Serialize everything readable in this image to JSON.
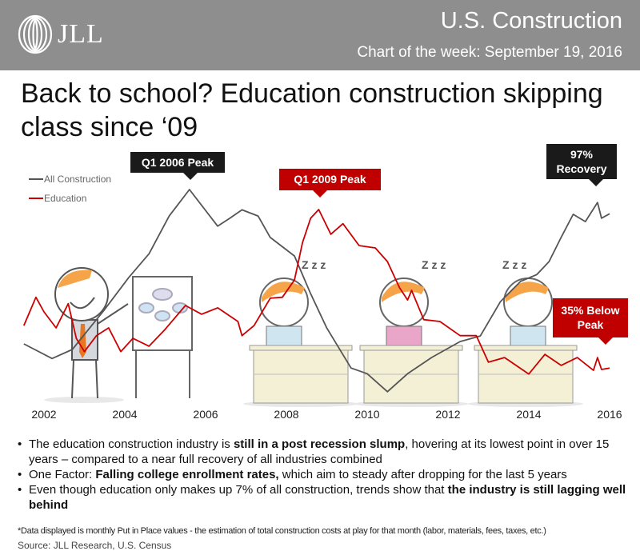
{
  "header": {
    "logo": "JLL",
    "title": "U.S. Construction",
    "subtitle": "Chart of the week: September 19, 2016"
  },
  "headline": "Back to school? Education construction skipping class since ‘09",
  "chart_data": {
    "type": "line",
    "title": "",
    "xlabel": "",
    "ylabel": "",
    "x_ticks": [
      "2002",
      "2004",
      "2006",
      "2008",
      "2010",
      "2012",
      "2014",
      "2016"
    ],
    "xlim": [
      2001.5,
      2016.0
    ],
    "y_axis_shown": false,
    "grid": false,
    "legend_position": "top-left",
    "series": [
      {
        "name": "All Construction",
        "color": "#555555",
        "unit": "% of own peak (estimated)",
        "x": [
          2001.5,
          2002.2,
          2002.7,
          2003.5,
          2004.1,
          2004.6,
          2005.1,
          2005.6,
          2006.3,
          2006.6,
          2006.9,
          2007.3,
          2007.6,
          2008.2,
          2008.6,
          2009.0,
          2009.6,
          2010.0,
          2010.5,
          2011.0,
          2011.6,
          2012.3,
          2012.8,
          2013.3,
          2013.8,
          2014.2,
          2014.5,
          2014.8,
          2015.1,
          2015.4,
          2015.7,
          2015.8,
          2016.0
        ],
        "y": [
          72.6,
          70.0,
          71.6,
          78.7,
          84.4,
          88.6,
          95.3,
          100,
          93.5,
          94.9,
          96.4,
          95.3,
          91.5,
          88.2,
          81.5,
          75.4,
          68.3,
          67.3,
          64.1,
          67.3,
          70.2,
          73.0,
          74.0,
          80.1,
          83.7,
          84.9,
          87.2,
          91.5,
          95.6,
          94.3,
          97.7,
          94.9,
          95.7
        ]
      },
      {
        "name": "Education",
        "color": "#cc0000",
        "unit": "% of own peak (estimated)",
        "x": [
          2001.5,
          2001.8,
          2002.0,
          2002.3,
          2002.6,
          2002.8,
          2003.0,
          2003.3,
          2003.6,
          2003.9,
          2004.2,
          2004.6,
          2005.0,
          2005.5,
          2005.9,
          2006.3,
          2006.8,
          2006.9,
          2007.2,
          2007.6,
          2007.9,
          2008.2,
          2008.4,
          2008.6,
          2008.8,
          2009.1,
          2009.4,
          2009.8,
          2010.2,
          2010.5,
          2010.8,
          2011.0,
          2011.1,
          2011.4,
          2011.8,
          2012.3,
          2012.7,
          2013.0,
          2013.4,
          2014.0,
          2014.4,
          2014.8,
          2015.2,
          2015.6,
          2015.7,
          2015.8,
          2016.0
        ],
        "y": [
          74.6,
          80.8,
          77.6,
          74.1,
          79.4,
          71.8,
          68.9,
          72.4,
          74.1,
          68.9,
          71.8,
          70.1,
          73.8,
          79.0,
          77.1,
          78.5,
          75.5,
          72.4,
          74.6,
          80.6,
          80.8,
          84.6,
          92.8,
          98.1,
          100,
          94.6,
          96.9,
          92.1,
          91.6,
          88.6,
          82.9,
          80.2,
          82.3,
          75.9,
          75.5,
          72.4,
          72.4,
          66.6,
          67.6,
          64.0,
          68.3,
          65.9,
          67.6,
          64.8,
          67.6,
          65.0,
          65.3
        ]
      }
    ],
    "annotations": [
      {
        "text": "Q1 2006 Peak",
        "series": "All Construction",
        "color": "#1a1a1a"
      },
      {
        "text": "Q1 2009 Peak",
        "series": "Education",
        "color": "#c00000"
      },
      {
        "text": "97% Recovery From Peak",
        "series": "All Construction",
        "color": "#1a1a1a"
      },
      {
        "text": "35% Below Peak",
        "series": "Education",
        "color": "#c00000"
      }
    ]
  },
  "bullets": [
    {
      "pre": "The education construction industry is ",
      "bold": "still in a post recession slump",
      "post": ", hovering at its lowest point in over 15 years – compared to a near full recovery of all industries combined"
    },
    {
      "pre": "One Factor: ",
      "bold": "Falling college enrollment rates,",
      "post": " which aim to steady after dropping for the last 5 years"
    },
    {
      "pre": "Even though education only makes up 7% of all construction, trends show that ",
      "bold": "the industry is still lagging well behind",
      "post": ""
    }
  ],
  "footnote": "*Data displayed is monthly Put in Place values - the estimation of total construction costs at play for that month (labor, materials, fees, taxes, etc.)",
  "source": "Source: JLL Research, U.S. Census"
}
